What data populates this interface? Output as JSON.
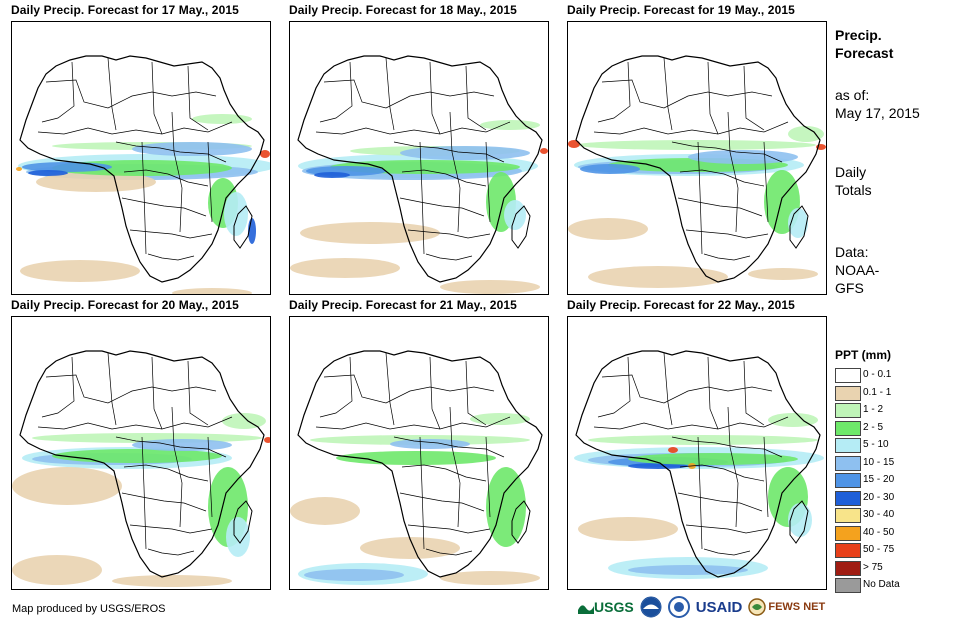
{
  "panels": [
    {
      "title": "Daily Precip. Forecast for 17 May., 2015"
    },
    {
      "title": "Daily Precip. Forecast for 18 May., 2015"
    },
    {
      "title": "Daily Precip. Forecast for 19 May., 2015"
    },
    {
      "title": "Daily Precip. Forecast for 20 May., 2015"
    },
    {
      "title": "Daily Precip. Forecast for 21 May., 2015"
    },
    {
      "title": "Daily Precip. Forecast for 22 May., 2015"
    }
  ],
  "sidebar": {
    "title_line1": "Precip.",
    "title_line2": "Forecast",
    "asof_line1": "as of:",
    "asof_line2": "May 17, 2015",
    "daily_line1": "Daily",
    "daily_line2": "Totals",
    "data_line1": "Data:",
    "data_line2": "NOAA-",
    "data_line3": "GFS"
  },
  "legend": {
    "title": "PPT (mm)",
    "items": [
      {
        "label": "0 - 0.1",
        "color": "#ffffff"
      },
      {
        "label": "0.1 - 1",
        "color": "#e9d3b0"
      },
      {
        "label": "1 - 2",
        "color": "#bff5b8"
      },
      {
        "label": "2 - 5",
        "color": "#6ee86a"
      },
      {
        "label": "5 - 10",
        "color": "#b5ecf5"
      },
      {
        "label": "10 - 15",
        "color": "#8ec0f0"
      },
      {
        "label": "15 - 20",
        "color": "#4f94e6"
      },
      {
        "label": "20 - 30",
        "color": "#1f5fd8"
      },
      {
        "label": "30 - 40",
        "color": "#f8e48a"
      },
      {
        "label": "40 - 50",
        "color": "#f4a21e"
      },
      {
        "label": "50 - 75",
        "color": "#e8401a"
      },
      {
        "label": "> 75",
        "color": "#a01c12"
      },
      {
        "label": "No Data",
        "color": "#9a9a9a"
      }
    ]
  },
  "footer": {
    "credit": "Map produced by USGS/EROS"
  },
  "logos": {
    "usgs": "USGS",
    "usaid": "USAID",
    "fewsnet": "FEWS NET"
  }
}
